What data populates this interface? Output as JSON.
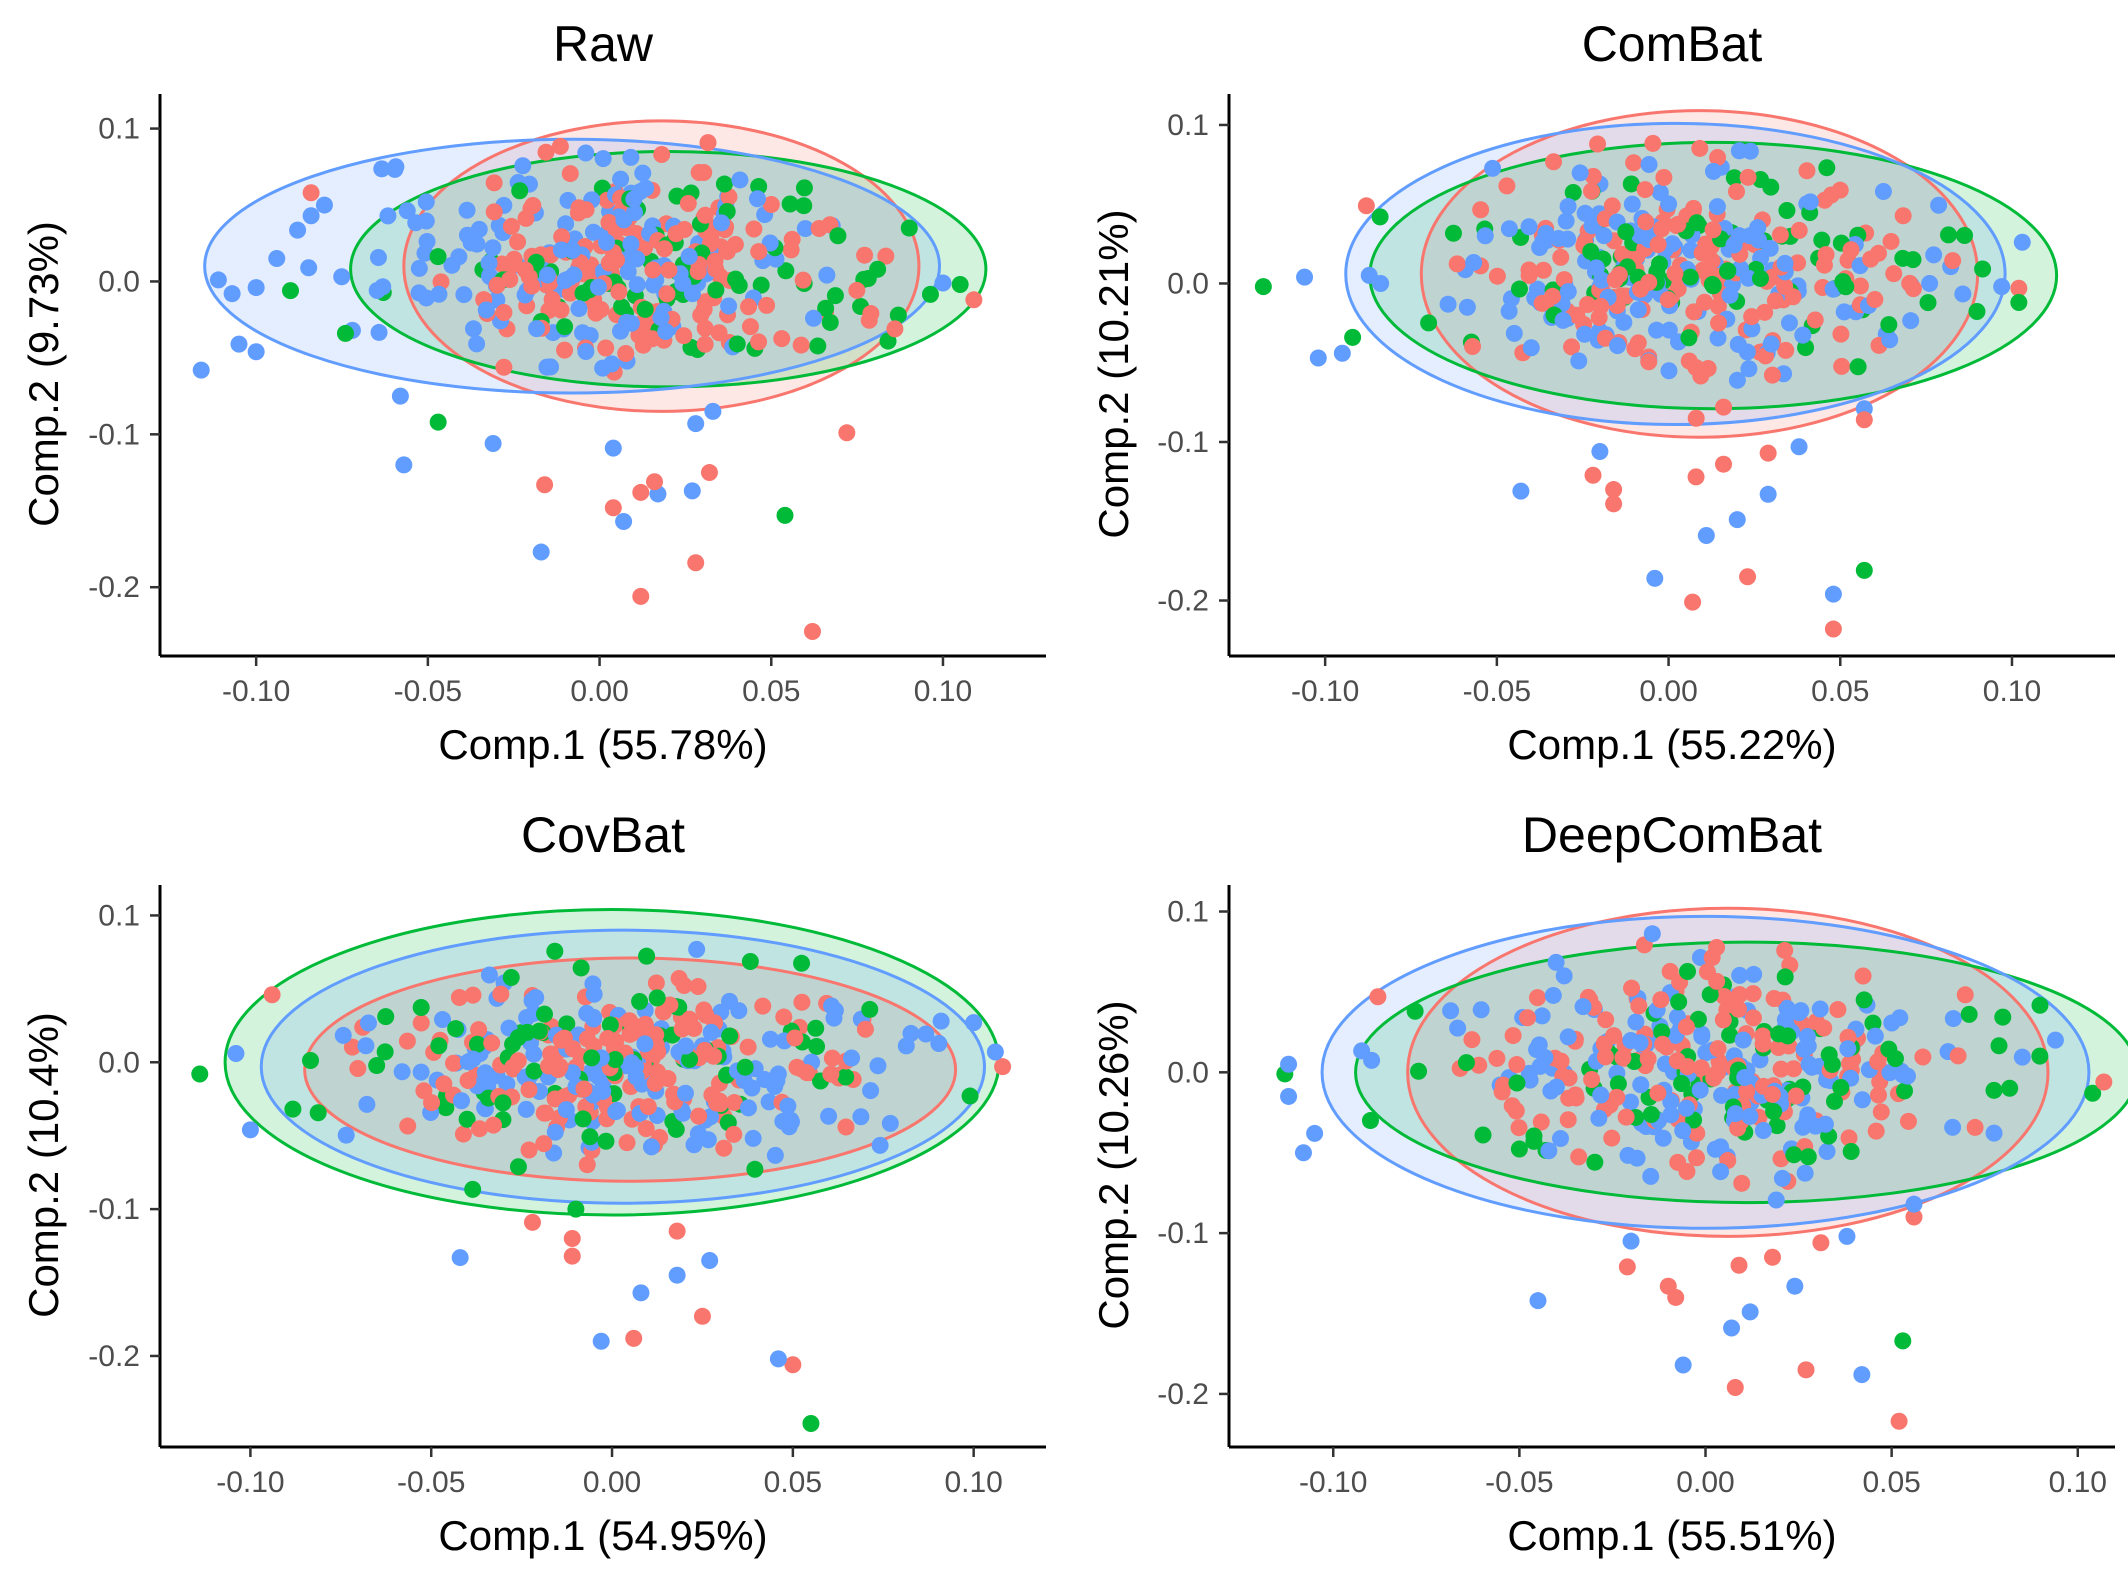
{
  "colors": {
    "group_red": "#F8766D",
    "group_green": "#00BA38",
    "group_blue": "#619CFF"
  },
  "chart_data": [
    {
      "type": "scatter",
      "title": "Raw",
      "xlabel": "Comp.1 (55.78%)",
      "ylabel": "Comp.2 (9.73%)",
      "xlim": [
        -0.128,
        0.13
      ],
      "ylim": [
        -0.245,
        0.12
      ],
      "xticks": [
        -0.1,
        -0.05,
        0.0,
        0.05,
        0.1
      ],
      "xtick_labels": [
        "-0.10",
        "-0.05",
        "0.00",
        "0.05",
        "0.10"
      ],
      "yticks": [
        0.1,
        0.0,
        -0.1,
        -0.2
      ],
      "ytick_labels": [
        "0.1",
        "0.0",
        "-0.1",
        "-0.2"
      ],
      "grid": false,
      "legend": "none",
      "series": [
        {
          "color": "#F8766D",
          "ellipse": {
            "cx": 0.018,
            "cy": 0.01,
            "rx": 0.075,
            "ry": 0.095
          },
          "outliers": [
            [
              -0.084,
              0.058
            ],
            [
              -0.016,
              -0.133
            ],
            [
              0.004,
              -0.148
            ],
            [
              0.012,
              -0.138
            ],
            [
              0.016,
              -0.131
            ],
            [
              0.032,
              -0.125
            ],
            [
              0.028,
              -0.184
            ],
            [
              0.012,
              -0.206
            ],
            [
              0.062,
              -0.229
            ],
            [
              0.072,
              -0.099
            ],
            [
              0.109,
              -0.012
            ],
            [
              0.086,
              -0.031
            ],
            [
              0.079,
              -0.021
            ]
          ],
          "core": {
            "n": 160,
            "cx": 0.015,
            "cy": 0.012,
            "sx": 0.032,
            "sy": 0.033,
            "seed": 11
          }
        },
        {
          "color": "#00BA38",
          "ellipse": {
            "cx": 0.02,
            "cy": 0.008,
            "rx": 0.0925,
            "ry": 0.077
          },
          "outliers": [
            [
              -0.09,
              -0.006
            ],
            [
              -0.074,
              -0.034
            ],
            [
              -0.047,
              -0.092
            ],
            [
              0.054,
              -0.153
            ],
            [
              0.105,
              -0.002
            ],
            [
              0.084,
              -0.039
            ],
            [
              0.087,
              -0.022
            ]
          ],
          "core": {
            "n": 75,
            "cx": 0.022,
            "cy": 0.007,
            "sx": 0.034,
            "sy": 0.03,
            "seed": 21
          }
        },
        {
          "color": "#619CFF",
          "ellipse": {
            "cx": -0.008,
            "cy": 0.01,
            "rx": 0.107,
            "ry": 0.083
          },
          "outliers": [
            [
              -0.116,
              -0.058
            ],
            [
              -0.111,
              0.001
            ],
            [
              -0.107,
              -0.008
            ],
            [
              -0.105,
              -0.041
            ],
            [
              -0.1,
              -0.046
            ],
            [
              -0.1,
              -0.004
            ],
            [
              -0.094,
              0.015
            ],
            [
              -0.084,
              0.043
            ],
            [
              -0.057,
              -0.12
            ],
            [
              -0.058,
              -0.075
            ],
            [
              -0.031,
              -0.106
            ],
            [
              -0.017,
              -0.177
            ],
            [
              0.007,
              -0.157
            ],
            [
              0.017,
              -0.139
            ],
            [
              0.027,
              -0.137
            ],
            [
              0.004,
              -0.109
            ],
            [
              0.028,
              -0.093
            ],
            [
              0.033,
              -0.085
            ],
            [
              0.1,
              -0.001
            ]
          ],
          "core": {
            "n": 150,
            "cx": -0.004,
            "cy": 0.01,
            "sx": 0.037,
            "sy": 0.034,
            "seed": 31
          }
        }
      ]
    },
    {
      "type": "scatter",
      "title": "ComBat",
      "xlabel": "Comp.1 (55.22%)",
      "ylabel": "Comp.2 (10.21%)",
      "xlim": [
        -0.128,
        0.13
      ],
      "ylim": [
        -0.235,
        0.117
      ],
      "xticks": [
        -0.1,
        -0.05,
        0.0,
        0.05,
        0.1
      ],
      "xtick_labels": [
        "-0.10",
        "-0.05",
        "0.00",
        "0.05",
        "0.10"
      ],
      "yticks": [
        0.1,
        0.0,
        -0.1,
        -0.2
      ],
      "ytick_labels": [
        "0.1",
        "0.0",
        "-0.1",
        "-0.2"
      ],
      "grid": false,
      "legend": "none",
      "series": [
        {
          "color": "#F8766D",
          "ellipse": {
            "cx": 0.009,
            "cy": 0.006,
            "rx": 0.081,
            "ry": 0.103
          },
          "outliers": [
            [
              -0.088,
              0.049
            ],
            [
              -0.022,
              -0.121
            ],
            [
              -0.016,
              -0.13
            ],
            [
              -0.016,
              -0.139
            ],
            [
              0.007,
              -0.201
            ],
            [
              0.008,
              -0.122
            ],
            [
              0.016,
              -0.114
            ],
            [
              0.023,
              -0.185
            ],
            [
              0.029,
              -0.107
            ],
            [
              0.048,
              -0.218
            ],
            [
              0.057,
              -0.086
            ],
            [
              0.102,
              -0.003
            ]
          ],
          "core": {
            "n": 160,
            "cx": 0.005,
            "cy": 0.008,
            "sx": 0.034,
            "sy": 0.035,
            "seed": 12
          }
        },
        {
          "color": "#00BA38",
          "ellipse": {
            "cx": 0.013,
            "cy": 0.005,
            "rx": 0.1,
            "ry": 0.084
          },
          "outliers": [
            [
              -0.118,
              -0.002
            ],
            [
              -0.092,
              -0.034
            ],
            [
              -0.084,
              0.042
            ],
            [
              0.057,
              -0.181
            ],
            [
              0.102,
              -0.012
            ]
          ],
          "core": {
            "n": 75,
            "cx": 0.01,
            "cy": 0.003,
            "sx": 0.036,
            "sy": 0.03,
            "seed": 22
          }
        },
        {
          "color": "#619CFF",
          "ellipse": {
            "cx": 0.002,
            "cy": 0.006,
            "rx": 0.096,
            "ry": 0.095
          },
          "outliers": [
            [
              -0.106,
              0.004
            ],
            [
              -0.102,
              -0.047
            ],
            [
              -0.095,
              -0.044
            ],
            [
              -0.043,
              -0.131
            ],
            [
              -0.02,
              -0.106
            ],
            [
              -0.004,
              -0.186
            ],
            [
              0.011,
              -0.159
            ],
            [
              0.02,
              -0.149
            ],
            [
              0.029,
              -0.133
            ],
            [
              0.038,
              -0.103
            ],
            [
              0.048,
              -0.196
            ],
            [
              0.057,
              -0.079
            ],
            [
              0.103,
              0.026
            ],
            [
              0.097,
              -0.002
            ]
          ],
          "core": {
            "n": 150,
            "cx": 0.003,
            "cy": 0.006,
            "sx": 0.038,
            "sy": 0.034,
            "seed": 32
          }
        }
      ]
    },
    {
      "type": "scatter",
      "title": "CovBat",
      "xlabel": "Comp.1 (54.95%)",
      "ylabel": "Comp.2 (10.4%)",
      "xlim": [
        -0.125,
        0.12
      ],
      "ylim": [
        -0.262,
        0.118
      ],
      "xticks": [
        -0.1,
        -0.05,
        0.0,
        0.05,
        0.1
      ],
      "xtick_labels": [
        "-0.10",
        "-0.05",
        "0.00",
        "0.05",
        "0.10"
      ],
      "yticks": [
        0.1,
        0.0,
        -0.1,
        -0.2
      ],
      "ytick_labels": [
        "0.1",
        "0.0",
        "-0.1",
        "-0.2"
      ],
      "grid": false,
      "legend": "none",
      "series": [
        {
          "color": "#F8766D",
          "ellipse": {
            "cx": 0.005,
            "cy": -0.005,
            "rx": 0.09,
            "ry": 0.076
          },
          "outliers": [
            [
              -0.094,
              0.046
            ],
            [
              -0.022,
              -0.109
            ],
            [
              -0.011,
              -0.132
            ],
            [
              -0.011,
              -0.12
            ],
            [
              0.006,
              -0.188
            ],
            [
              0.018,
              -0.115
            ],
            [
              0.025,
              -0.173
            ],
            [
              0.05,
              -0.206
            ],
            [
              0.108,
              -0.003
            ]
          ],
          "core": {
            "n": 160,
            "cx": 0.002,
            "cy": 0.0,
            "sx": 0.036,
            "sy": 0.03,
            "seed": 13
          }
        },
        {
          "color": "#00BA38",
          "ellipse": {
            "cx": 0.0,
            "cy": 0.0,
            "rx": 0.107,
            "ry": 0.104
          },
          "outliers": [
            [
              -0.114,
              -0.008
            ],
            [
              -0.01,
              -0.1
            ],
            [
              0.055,
              -0.246
            ],
            [
              0.099,
              -0.023
            ]
          ],
          "core": {
            "n": 75,
            "cx": 0.002,
            "cy": -0.005,
            "sx": 0.038,
            "sy": 0.032,
            "seed": 23
          }
        },
        {
          "color": "#619CFF",
          "ellipse": {
            "cx": 0.003,
            "cy": -0.003,
            "rx": 0.1,
            "ry": 0.093
          },
          "outliers": [
            [
              -0.104,
              0.006
            ],
            [
              -0.1,
              -0.046
            ],
            [
              -0.042,
              -0.133
            ],
            [
              -0.003,
              -0.19
            ],
            [
              0.008,
              -0.157
            ],
            [
              0.018,
              -0.145
            ],
            [
              0.027,
              -0.135
            ],
            [
              0.046,
              -0.202
            ],
            [
              0.091,
              0.028
            ],
            [
              0.1,
              0.027
            ],
            [
              0.106,
              0.007
            ]
          ],
          "core": {
            "n": 150,
            "cx": 0.004,
            "cy": -0.002,
            "sx": 0.04,
            "sy": 0.032,
            "seed": 33
          }
        }
      ]
    },
    {
      "type": "scatter",
      "title": "DeepComBat",
      "xlabel": "Comp.1 (55.51%)",
      "ylabel": "Comp.2 (10.26%)",
      "xlim": [
        -0.128,
        0.11
      ],
      "ylim": [
        -0.233,
        0.114
      ],
      "xticks": [
        -0.1,
        -0.05,
        0.0,
        0.05,
        0.1
      ],
      "xtick_labels": [
        "-0.10",
        "-0.05",
        "0.00",
        "0.05",
        "0.10"
      ],
      "yticks": [
        0.1,
        0.0,
        -0.1,
        -0.2
      ],
      "ytick_labels": [
        "0.1",
        "0.0",
        "-0.1",
        "-0.2"
      ],
      "grid": false,
      "legend": "none",
      "series": [
        {
          "color": "#F8766D",
          "ellipse": {
            "cx": 0.006,
            "cy": 0.0,
            "rx": 0.086,
            "ry": 0.102
          },
          "outliers": [
            [
              -0.088,
              0.047
            ],
            [
              -0.021,
              -0.121
            ],
            [
              -0.01,
              -0.133
            ],
            [
              -0.008,
              -0.14
            ],
            [
              0.008,
              -0.196
            ],
            [
              0.009,
              -0.12
            ],
            [
              0.018,
              -0.115
            ],
            [
              0.027,
              -0.185
            ],
            [
              0.031,
              -0.106
            ],
            [
              0.052,
              -0.217
            ],
            [
              0.056,
              -0.09
            ],
            [
              0.107,
              -0.006
            ]
          ],
          "core": {
            "n": 160,
            "cx": 0.003,
            "cy": 0.005,
            "sx": 0.034,
            "sy": 0.034,
            "seed": 14
          }
        },
        {
          "color": "#00BA38",
          "ellipse": {
            "cx": 0.011,
            "cy": 0.0,
            "rx": 0.105,
            "ry": 0.081
          },
          "outliers": [
            [
              -0.113,
              -0.001
            ],
            [
              -0.09,
              -0.03
            ],
            [
              -0.078,
              0.038
            ],
            [
              0.053,
              -0.167
            ],
            [
              0.104,
              -0.013
            ]
          ],
          "core": {
            "n": 75,
            "cx": 0.008,
            "cy": -0.001,
            "sx": 0.036,
            "sy": 0.03,
            "seed": 24
          }
        },
        {
          "color": "#619CFF",
          "ellipse": {
            "cx": 0.0,
            "cy": 0.0,
            "rx": 0.103,
            "ry": 0.097
          },
          "outliers": [
            [
              -0.112,
              0.005
            ],
            [
              -0.112,
              -0.015
            ],
            [
              -0.108,
              -0.05
            ],
            [
              -0.105,
              -0.038
            ],
            [
              -0.045,
              -0.142
            ],
            [
              -0.02,
              -0.105
            ],
            [
              -0.006,
              -0.182
            ],
            [
              0.007,
              -0.159
            ],
            [
              0.012,
              -0.149
            ],
            [
              0.024,
              -0.133
            ],
            [
              0.038,
              -0.102
            ],
            [
              0.042,
              -0.188
            ],
            [
              0.056,
              -0.082
            ],
            [
              0.094,
              0.02
            ]
          ],
          "core": {
            "n": 150,
            "cx": 0.001,
            "cy": 0.003,
            "sx": 0.038,
            "sy": 0.034,
            "seed": 34
          }
        }
      ]
    }
  ]
}
